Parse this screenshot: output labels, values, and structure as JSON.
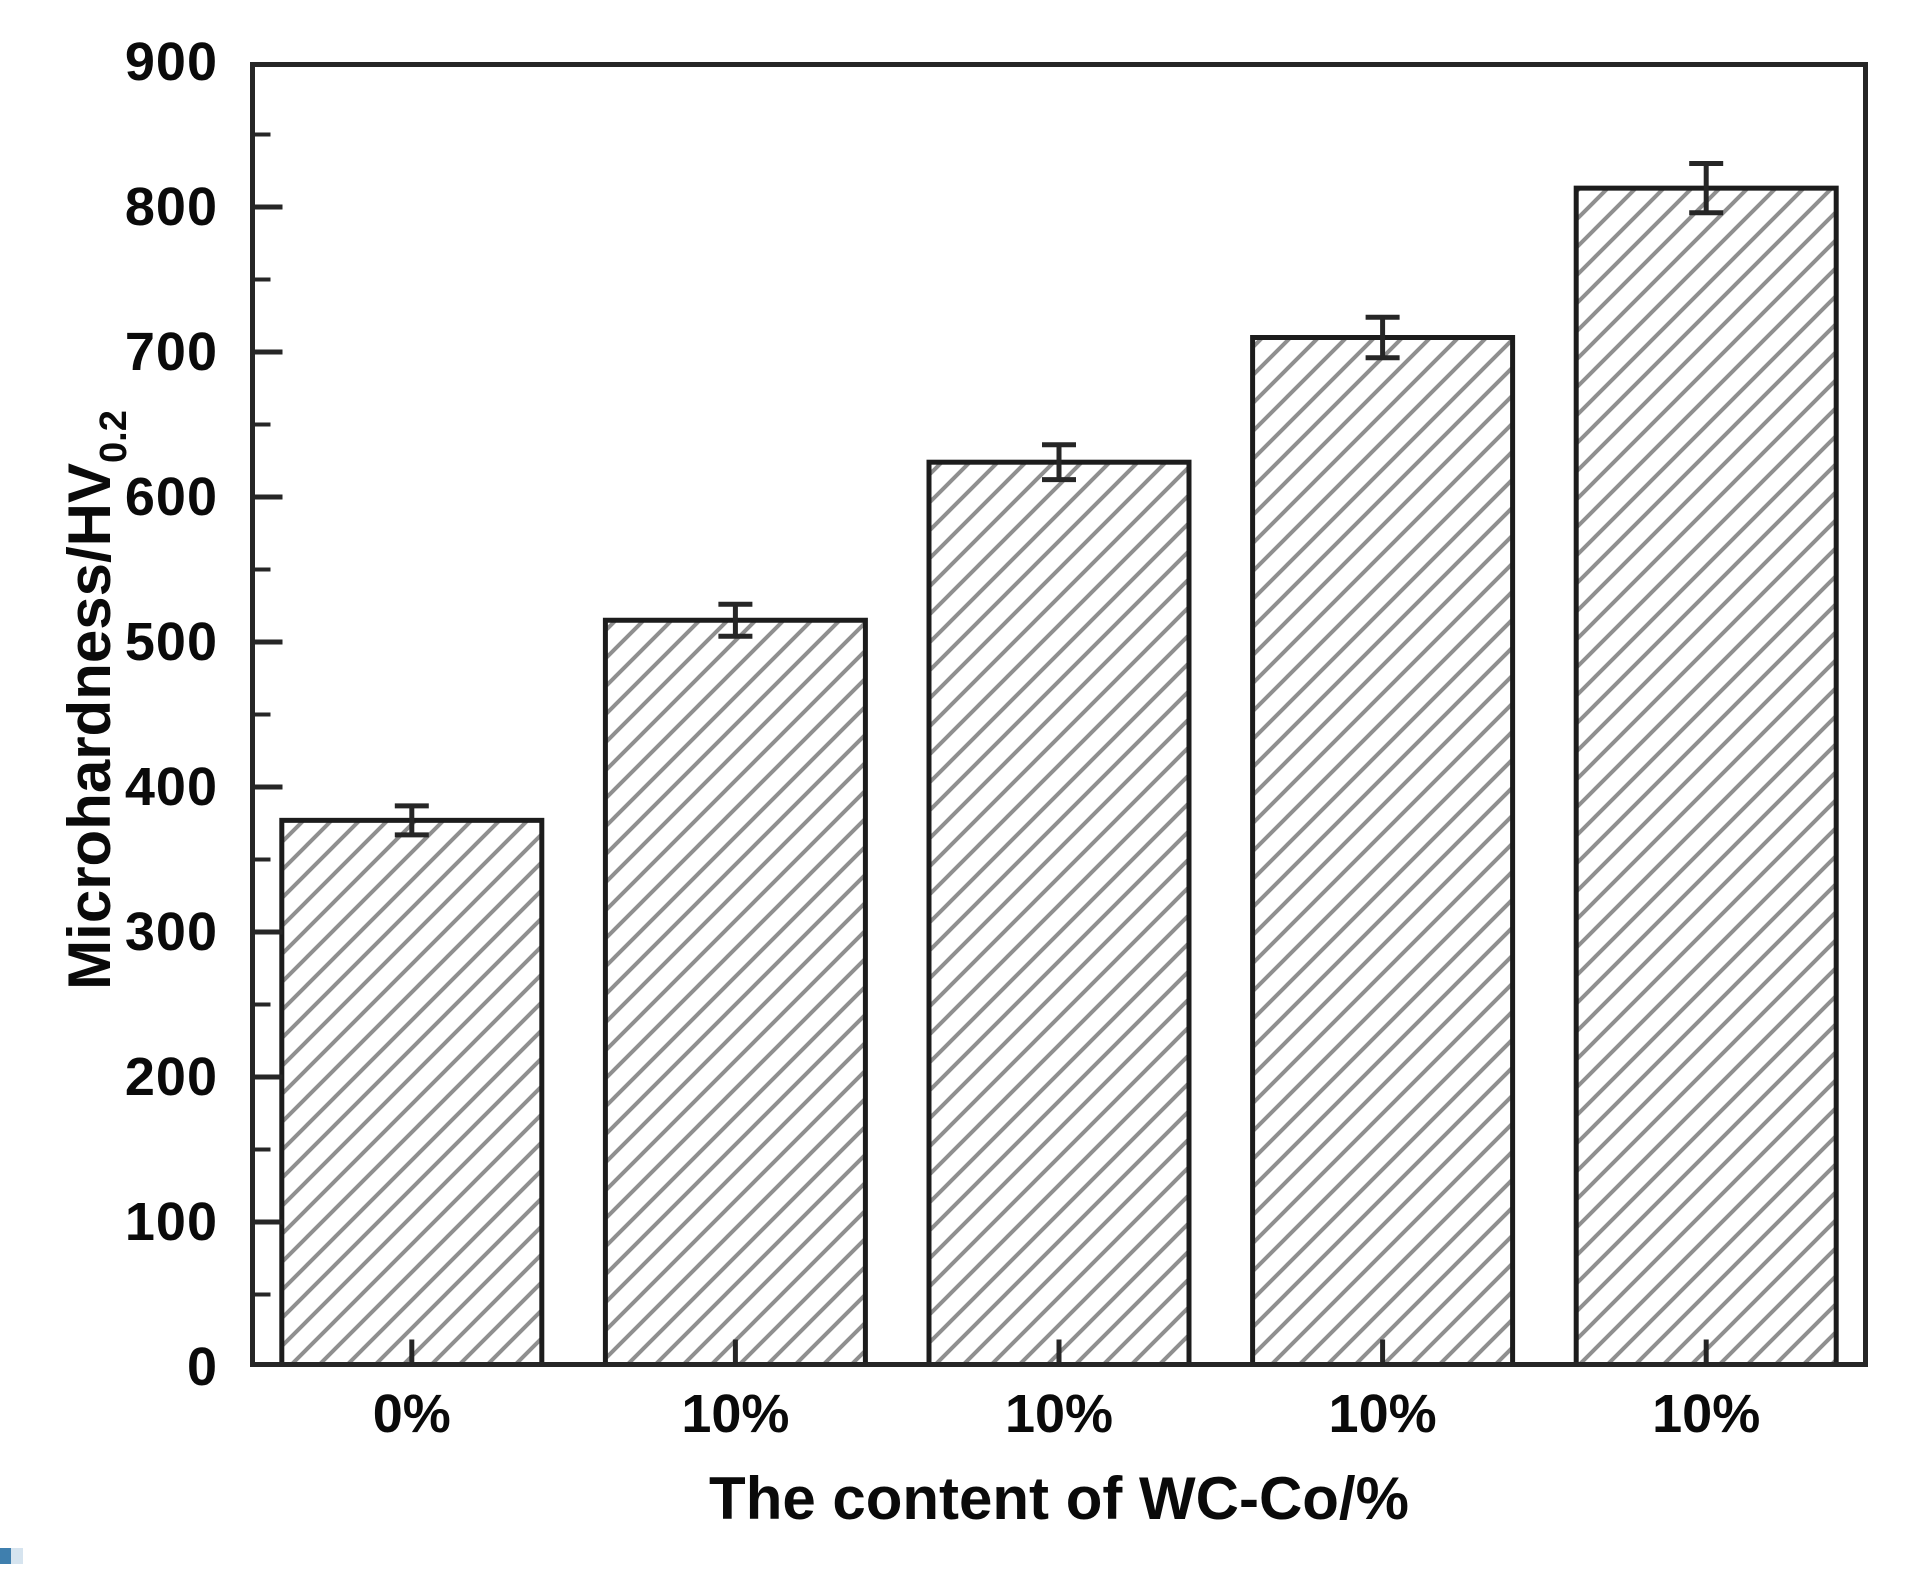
{
  "figure": {
    "background": "#ffffff"
  },
  "chart_data": {
    "type": "bar",
    "title": "",
    "xlabel": "The content of WC-Co/%",
    "ylabel": "Microhardness/HV0.2",
    "ylabel_main": "Microhardness/HV",
    "ylabel_sub": "0.2",
    "categories": [
      "0%",
      "10%",
      "10%",
      "10%",
      "10%"
    ],
    "values": [
      377,
      515,
      624,
      710,
      813
    ],
    "errors": [
      10,
      11,
      12,
      14,
      17
    ],
    "ylim": [
      0,
      900
    ],
    "yticks": [
      0,
      100,
      200,
      300,
      400,
      500,
      600,
      700,
      800,
      900
    ],
    "ytick_step": 100,
    "ytick_minor_step": 50,
    "grid": false,
    "legend": false,
    "bar_style": "diagonal-hatch",
    "colors": {
      "axis": "#262626",
      "bar_edge": "#1c1c1c",
      "hatch": "#8f8f8f",
      "text": "#0a0a0a",
      "artifact_blue": "#3f7fae",
      "artifact_blue_light": "#d6e4ef"
    }
  }
}
